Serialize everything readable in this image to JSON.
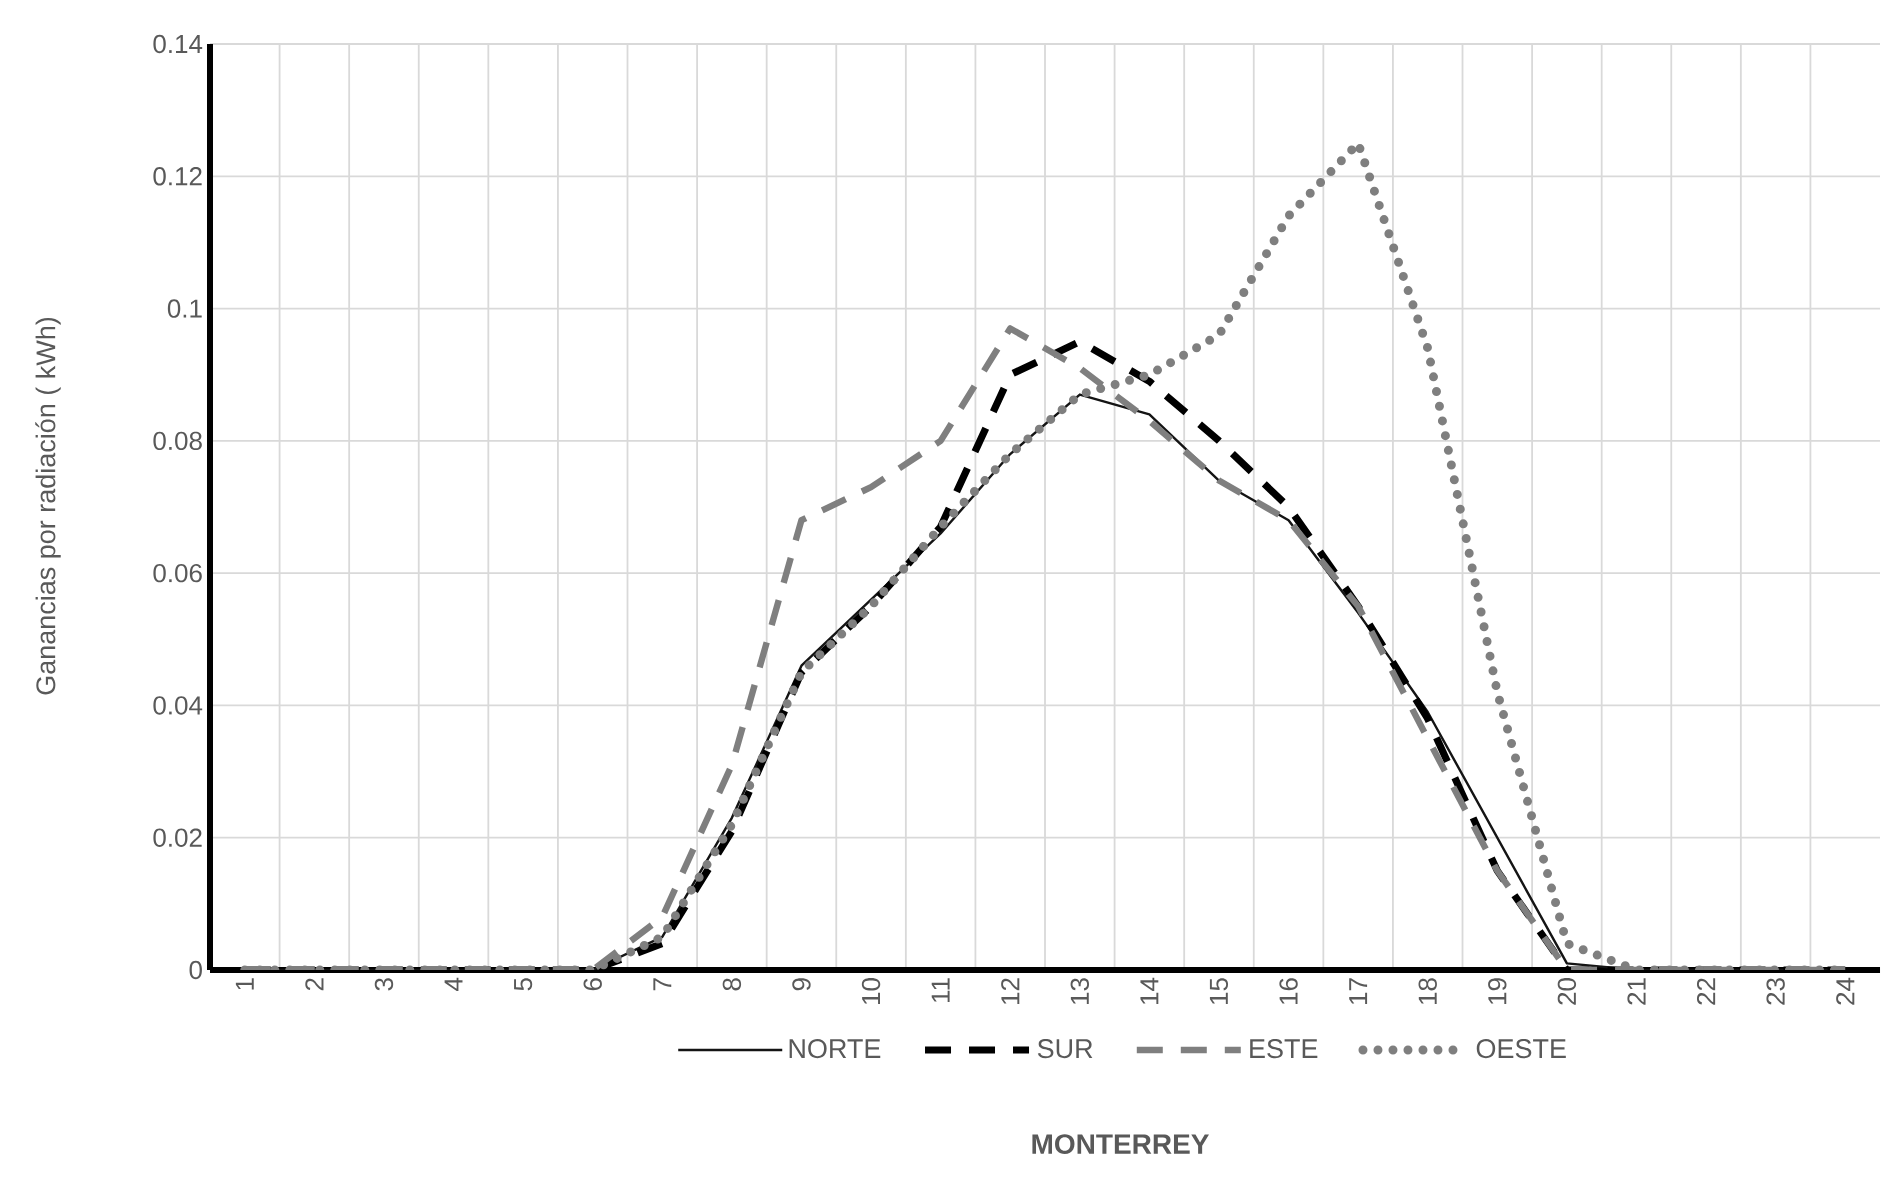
{
  "chart_data": {
    "type": "line",
    "title": "MONTERREY",
    "ylabel": "Ganancias por radiación ( kWh)",
    "categories": [
      "1",
      "2",
      "3",
      "4",
      "5",
      "6",
      "7",
      "8",
      "9",
      "10",
      "11",
      "12",
      "13",
      "14",
      "15",
      "16",
      "17",
      "18",
      "19",
      "20",
      "21",
      "22",
      "23",
      "24"
    ],
    "series": [
      {
        "name": "NORTE",
        "color": "#141414",
        "line_style": "solid",
        "values": [
          0,
          0,
          0,
          0,
          0,
          0,
          0.005,
          0.023,
          0.046,
          0.056,
          0.066,
          0.078,
          0.087,
          0.084,
          0.074,
          0.068,
          0.054,
          0.039,
          0.02,
          0.001,
          0,
          0,
          0,
          0
        ]
      },
      {
        "name": "SUR",
        "color": "#000000",
        "line_style": "dashed",
        "values": [
          0,
          0,
          0,
          0,
          0,
          0,
          0.004,
          0.021,
          0.045,
          0.055,
          0.067,
          0.09,
          0.095,
          0.089,
          0.08,
          0.07,
          0.055,
          0.038,
          0.015,
          0,
          0,
          0,
          0,
          0
        ]
      },
      {
        "name": "ESTE",
        "color": "#7f7f7f",
        "line_style": "dashed",
        "values": [
          0,
          0,
          0,
          0,
          0,
          0,
          0.008,
          0.031,
          0.068,
          0.073,
          0.08,
          0.097,
          0.091,
          0.083,
          0.074,
          0.068,
          0.055,
          0.035,
          0.015,
          0,
          0,
          0,
          0,
          0
        ]
      },
      {
        "name": "OESTE",
        "color": "#7f7f7f",
        "line_style": "dotted",
        "values": [
          0,
          0,
          0,
          0,
          0,
          0,
          0.005,
          0.022,
          0.045,
          0.055,
          0.067,
          0.078,
          0.087,
          0.09,
          0.096,
          0.114,
          0.125,
          0.094,
          0.042,
          0.004,
          0,
          0,
          0,
          0
        ]
      }
    ],
    "ylim": [
      0,
      0.14
    ],
    "yticks": [
      0,
      0.02,
      0.04,
      0.06,
      0.08,
      0.1,
      0.12,
      0.14
    ],
    "grid": true,
    "legend": "bottom"
  }
}
